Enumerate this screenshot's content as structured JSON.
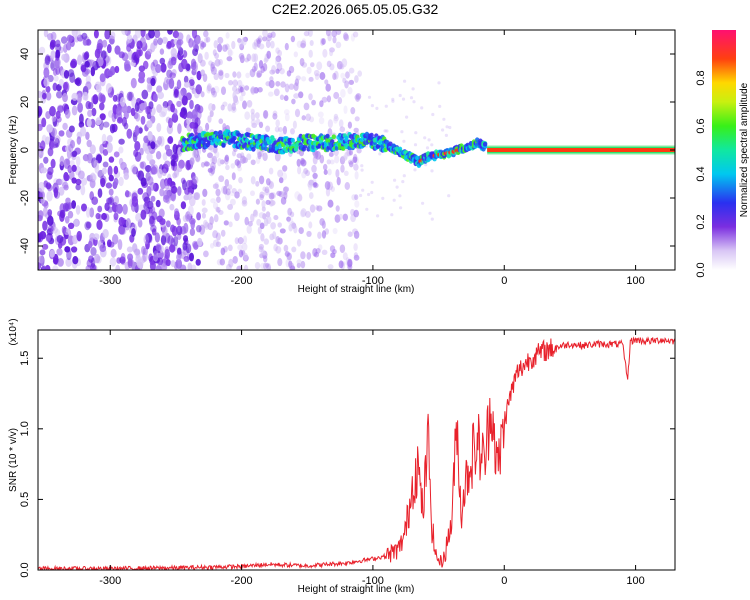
{
  "title": "C2E2.2026.065.05.05.G32",
  "chart_data": [
    {
      "type": "heatmap",
      "title": "C2E2.2026.065.05.05.G32",
      "xlabel": "Height of straight line (km)",
      "ylabel": "Frequency (Hz)",
      "xlim": [
        -355,
        130
      ],
      "ylim": [
        -50,
        50
      ],
      "xticks": [
        -300,
        -200,
        -100,
        0,
        100
      ],
      "yticks": [
        -40,
        -20,
        0,
        20,
        40
      ],
      "ridge": {
        "x": [
          -245,
          -230,
          -210,
          -190,
          -170,
          -150,
          -130,
          -110,
          -95,
          -85,
          -75,
          -65,
          -58,
          -50,
          -40,
          -30,
          -20,
          -13,
          0,
          50,
          100,
          130
        ],
        "y": [
          3,
          4,
          5,
          3,
          2,
          3,
          3,
          4,
          3,
          1,
          -2,
          -5,
          -3,
          -2,
          -1,
          1,
          3,
          1,
          0,
          0,
          0,
          0
        ]
      },
      "colorbar": {
        "label": "Normalized spectral amplitude",
        "range": [
          0,
          1
        ],
        "ticks": [
          "0.0",
          "0.2",
          "0.4",
          "0.6",
          "0.8"
        ]
      }
    },
    {
      "type": "line",
      "title": "",
      "xlabel": "Height of straight line (km)",
      "ylabel": "SNR (10 * v/v)",
      "multiplier": "(x10⁴)",
      "xlim": [
        -355,
        130
      ],
      "ylim": [
        0,
        1.7
      ],
      "xticks": [
        -300,
        -200,
        -100,
        0,
        100
      ],
      "yticks": [
        "0.0",
        "0.5",
        "1.0",
        "1.5"
      ],
      "series": [
        {
          "name": "SNR",
          "color": "#e8212b",
          "x": [
            -355,
            -300,
            -250,
            -200,
            -180,
            -150,
            -120,
            -100,
            -90,
            -80,
            -75,
            -70,
            -66,
            -62,
            -58,
            -55,
            -52,
            -48,
            -45,
            -40,
            -36,
            -33,
            -30,
            -25,
            -20,
            -15,
            -10,
            -5,
            0,
            5,
            10,
            20,
            30,
            40,
            50,
            60,
            70,
            80,
            90,
            94,
            96,
            100,
            110,
            120,
            130
          ],
          "y": [
            0.01,
            0.01,
            0.015,
            0.025,
            0.04,
            0.03,
            0.05,
            0.08,
            0.1,
            0.15,
            0.28,
            0.6,
            0.75,
            0.4,
            0.92,
            0.3,
            0.1,
            0.05,
            0.12,
            0.35,
            1.05,
            0.4,
            0.6,
            0.8,
            0.9,
            0.75,
            1.2,
            0.7,
            1.05,
            1.25,
            1.4,
            1.5,
            1.55,
            1.58,
            1.6,
            1.59,
            1.6,
            1.6,
            1.6,
            1.35,
            1.62,
            1.63,
            1.62,
            1.63,
            1.62
          ]
        }
      ]
    }
  ]
}
